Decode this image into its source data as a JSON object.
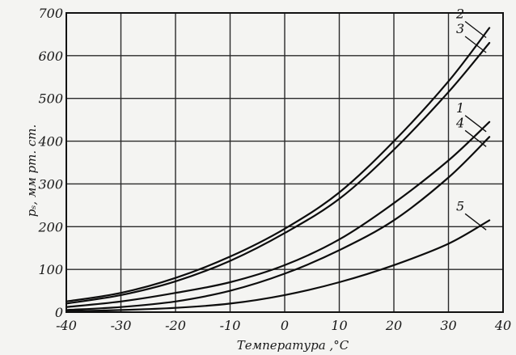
{
  "chart_data": {
    "type": "line",
    "xlabel": "Температура ,°C",
    "ylabel": "pₛ, мм рт. ст.",
    "xlim": [
      -40,
      40
    ],
    "ylim": [
      0,
      700
    ],
    "x_ticks": [
      -40,
      -30,
      -20,
      -10,
      0,
      10,
      20,
      30,
      40
    ],
    "x_tick_labels": [
      "-40",
      "-30",
      "-20",
      "-10",
      "0",
      "10",
      "20",
      "30",
      "40"
    ],
    "y_ticks": [
      0,
      100,
      200,
      300,
      400,
      500,
      600,
      700
    ],
    "y_tick_labels": [
      "0",
      "100",
      "200",
      "300",
      "400",
      "500",
      "600",
      "700"
    ],
    "grid": true,
    "legend": "none",
    "series": [
      {
        "label": "2",
        "x": [
          -40,
          -30,
          -20,
          -10,
          0,
          10,
          20,
          30,
          37.5
        ],
        "values": [
          25,
          45,
          80,
          130,
          195,
          280,
          400,
          540,
          665
        ]
      },
      {
        "label": "3",
        "x": [
          -40,
          -30,
          -20,
          -10,
          0,
          10,
          20,
          30,
          37.5
        ],
        "values": [
          20,
          40,
          72,
          120,
          185,
          265,
          380,
          515,
          630
        ]
      },
      {
        "label": "1",
        "x": [
          -40,
          -30,
          -20,
          -10,
          0,
          10,
          20,
          30,
          37.5
        ],
        "values": [
          12,
          25,
          45,
          70,
          110,
          170,
          255,
          355,
          445
        ]
      },
      {
        "label": "4",
        "x": [
          -40,
          -30,
          -20,
          -10,
          0,
          10,
          20,
          30,
          37.5
        ],
        "values": [
          5,
          12,
          25,
          50,
          90,
          145,
          215,
          315,
          410
        ]
      },
      {
        "label": "5",
        "x": [
          -40,
          -30,
          -20,
          -10,
          0,
          10,
          20,
          30,
          37.5
        ],
        "values": [
          2,
          5,
          10,
          20,
          40,
          70,
          110,
          160,
          215
        ]
      }
    ]
  }
}
